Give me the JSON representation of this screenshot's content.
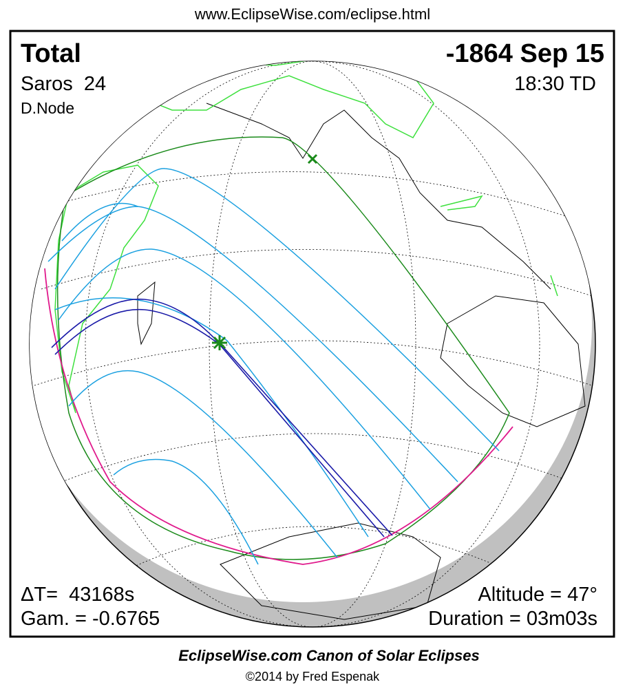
{
  "header": {
    "url": "www.EclipseWise.com/eclipse.html"
  },
  "panel": {
    "eclipse_type": "Total",
    "date": "-1864 Sep 15",
    "saros": "Saros  24",
    "time": "18:30 TD",
    "node": "D.Node",
    "delta_t": "ΔT=  43168s",
    "gamma": "Gam. = -0.6765",
    "altitude": "Altitude = 47°",
    "duration": "Duration = 03m03s"
  },
  "footer": {
    "title": "EclipseWise.com Canon of Solar Eclipses",
    "copyright": "©2014 by Fred Espenak"
  }
}
